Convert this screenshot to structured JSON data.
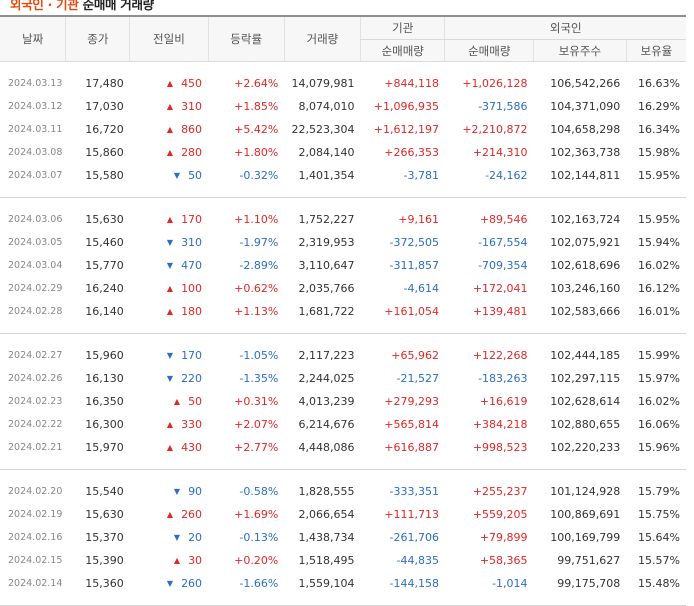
{
  "title": {
    "highlight": "외국인 · 기관",
    "rest": " 순매매 거래량"
  },
  "headers": {
    "date": "날짜",
    "close": "종가",
    "change": "전일비",
    "rate": "등락률",
    "volume": "거래량",
    "institution": "기관",
    "foreign": "외국인",
    "inst_net": "순매매량",
    "foreign_net": "순매매량",
    "holdings": "보유주수",
    "holding_ratio": "보유율"
  },
  "rows": [
    {
      "date": "2024.03.13",
      "close": "17,480",
      "dir": "up",
      "change": "450",
      "rate": "+2.64%",
      "volume": "14,079,981",
      "inst": "+844,118",
      "foreign": "+1,026,128",
      "holdings": "106,542,266",
      "ratio": "16.63%"
    },
    {
      "date": "2024.03.12",
      "close": "17,030",
      "dir": "up",
      "change": "310",
      "rate": "+1.85%",
      "volume": "8,074,010",
      "inst": "+1,096,935",
      "foreign": "-371,586",
      "holdings": "104,371,090",
      "ratio": "16.29%"
    },
    {
      "date": "2024.03.11",
      "close": "16,720",
      "dir": "up",
      "change": "860",
      "rate": "+5.42%",
      "volume": "22,523,304",
      "inst": "+1,612,197",
      "foreign": "+2,210,872",
      "holdings": "104,658,298",
      "ratio": "16.34%"
    },
    {
      "date": "2024.03.08",
      "close": "15,860",
      "dir": "up",
      "change": "280",
      "rate": "+1.80%",
      "volume": "2,084,140",
      "inst": "+266,353",
      "foreign": "+214,310",
      "holdings": "102,363,738",
      "ratio": "15.98%"
    },
    {
      "date": "2024.03.07",
      "close": "15,580",
      "dir": "down",
      "change": "50",
      "rate": "-0.32%",
      "volume": "1,401,354",
      "inst": "-3,781",
      "foreign": "-24,162",
      "holdings": "102,144,811",
      "ratio": "15.95%"
    },
    {
      "date": "2024.03.06",
      "close": "15,630",
      "dir": "up",
      "change": "170",
      "rate": "+1.10%",
      "volume": "1,752,227",
      "inst": "+9,161",
      "foreign": "+89,546",
      "holdings": "102,163,724",
      "ratio": "15.95%"
    },
    {
      "date": "2024.03.05",
      "close": "15,460",
      "dir": "down",
      "change": "310",
      "rate": "-1.97%",
      "volume": "2,319,953",
      "inst": "-372,505",
      "foreign": "-167,554",
      "holdings": "102,075,921",
      "ratio": "15.94%"
    },
    {
      "date": "2024.03.04",
      "close": "15,770",
      "dir": "down",
      "change": "470",
      "rate": "-2.89%",
      "volume": "3,110,647",
      "inst": "-311,857",
      "foreign": "-709,354",
      "holdings": "102,618,696",
      "ratio": "16.02%"
    },
    {
      "date": "2024.02.29",
      "close": "16,240",
      "dir": "up",
      "change": "100",
      "rate": "+0.62%",
      "volume": "2,035,766",
      "inst": "-4,614",
      "foreign": "+172,041",
      "holdings": "103,246,160",
      "ratio": "16.12%"
    },
    {
      "date": "2024.02.28",
      "close": "16,140",
      "dir": "up",
      "change": "180",
      "rate": "+1.13%",
      "volume": "1,681,722",
      "inst": "+161,054",
      "foreign": "+139,481",
      "holdings": "102,583,666",
      "ratio": "16.01%"
    },
    {
      "date": "2024.02.27",
      "close": "15,960",
      "dir": "down",
      "change": "170",
      "rate": "-1.05%",
      "volume": "2,117,223",
      "inst": "+65,962",
      "foreign": "+122,268",
      "holdings": "102,444,185",
      "ratio": "15.99%"
    },
    {
      "date": "2024.02.26",
      "close": "16,130",
      "dir": "down",
      "change": "220",
      "rate": "-1.35%",
      "volume": "2,244,025",
      "inst": "-21,527",
      "foreign": "-183,263",
      "holdings": "102,297,115",
      "ratio": "15.97%"
    },
    {
      "date": "2024.02.23",
      "close": "16,350",
      "dir": "up",
      "change": "50",
      "rate": "+0.31%",
      "volume": "4,013,239",
      "inst": "+279,293",
      "foreign": "+16,619",
      "holdings": "102,628,614",
      "ratio": "16.02%"
    },
    {
      "date": "2024.02.22",
      "close": "16,300",
      "dir": "up",
      "change": "330",
      "rate": "+2.07%",
      "volume": "6,214,676",
      "inst": "+565,814",
      "foreign": "+384,218",
      "holdings": "102,880,655",
      "ratio": "16.06%"
    },
    {
      "date": "2024.02.21",
      "close": "15,970",
      "dir": "up",
      "change": "430",
      "rate": "+2.77%",
      "volume": "4,448,086",
      "inst": "+616,887",
      "foreign": "+998,523",
      "holdings": "102,220,233",
      "ratio": "15.96%"
    },
    {
      "date": "2024.02.20",
      "close": "15,540",
      "dir": "down",
      "change": "90",
      "rate": "-0.58%",
      "volume": "1,828,555",
      "inst": "-333,351",
      "foreign": "+255,237",
      "holdings": "101,124,928",
      "ratio": "15.79%"
    },
    {
      "date": "2024.02.19",
      "close": "15,630",
      "dir": "up",
      "change": "260",
      "rate": "+1.69%",
      "volume": "2,066,654",
      "inst": "+111,713",
      "foreign": "+559,205",
      "holdings": "100,869,691",
      "ratio": "15.75%"
    },
    {
      "date": "2024.02.16",
      "close": "15,370",
      "dir": "down",
      "change": "20",
      "rate": "-0.13%",
      "volume": "1,438,734",
      "inst": "-261,706",
      "foreign": "+79,899",
      "holdings": "100,169,799",
      "ratio": "15.64%"
    },
    {
      "date": "2024.02.15",
      "close": "15,390",
      "dir": "up",
      "change": "30",
      "rate": "+0.20%",
      "volume": "1,518,495",
      "inst": "-44,835",
      "foreign": "+58,365",
      "holdings": "99,751,627",
      "ratio": "15.57%"
    },
    {
      "date": "2024.02.14",
      "close": "15,360",
      "dir": "down",
      "change": "260",
      "rate": "-1.66%",
      "volume": "1,559,104",
      "inst": "-144,158",
      "foreign": "-1,014",
      "holdings": "99,175,708",
      "ratio": "15.48%"
    }
  ],
  "colors": {
    "up": "#e12828",
    "down": "#2a6fc7",
    "title_accent": "#e8470d"
  },
  "icons": {
    "up": "triangle-up-icon",
    "down": "triangle-down-icon"
  }
}
